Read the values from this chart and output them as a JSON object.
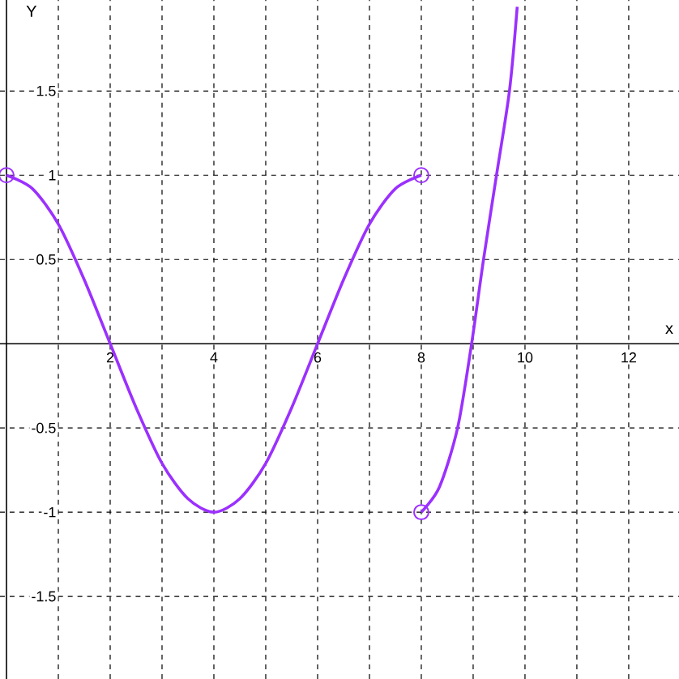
{
  "chart_data": {
    "type": "line",
    "xlabel": "x",
    "ylabel": "Y",
    "xlim": [
      -0.125,
      12.97
    ],
    "ylim": [
      -1.99,
      2.04
    ],
    "xticks": [
      {
        "value": 1,
        "label": null
      },
      2,
      {
        "value": 3,
        "label": null
      },
      4,
      {
        "value": 5,
        "label": null
      },
      6,
      {
        "value": 7,
        "label": null
      },
      8,
      {
        "value": 9,
        "label": null
      },
      10,
      {
        "value": 11,
        "label": null
      },
      12
    ],
    "yticks": [
      -1.5,
      -1,
      -0.5,
      {
        "value": 0,
        "label": null
      },
      0.5,
      1,
      1.5
    ],
    "grid": true,
    "series": [
      {
        "color": "#9b30ff",
        "marker": "none",
        "x": [
          0,
          0.5,
          1,
          1.5,
          2,
          2.5,
          3,
          3.5,
          4,
          4.5,
          5,
          5.5,
          6,
          6.5,
          7,
          7.5,
          8
        ],
        "values": [
          1,
          0.92,
          0.71,
          0.38,
          0,
          -0.38,
          -0.71,
          -0.92,
          -1,
          -0.92,
          -0.71,
          -0.38,
          0,
          0.38,
          0.71,
          0.92,
          1
        ]
      },
      {
        "color": "#9b30ff",
        "marker": "none",
        "x": [
          8,
          8.35,
          8.7,
          8.97,
          9.2,
          9.45,
          9.7,
          9.85
        ],
        "values": [
          -1,
          -0.85,
          -0.5,
          0,
          0.5,
          1,
          1.5,
          2.0
        ]
      },
      {
        "type": "scatter",
        "color": "#9b30ff",
        "marker": "circle",
        "x": [
          0,
          8,
          8
        ],
        "values": [
          1,
          1,
          -1
        ]
      }
    ]
  }
}
